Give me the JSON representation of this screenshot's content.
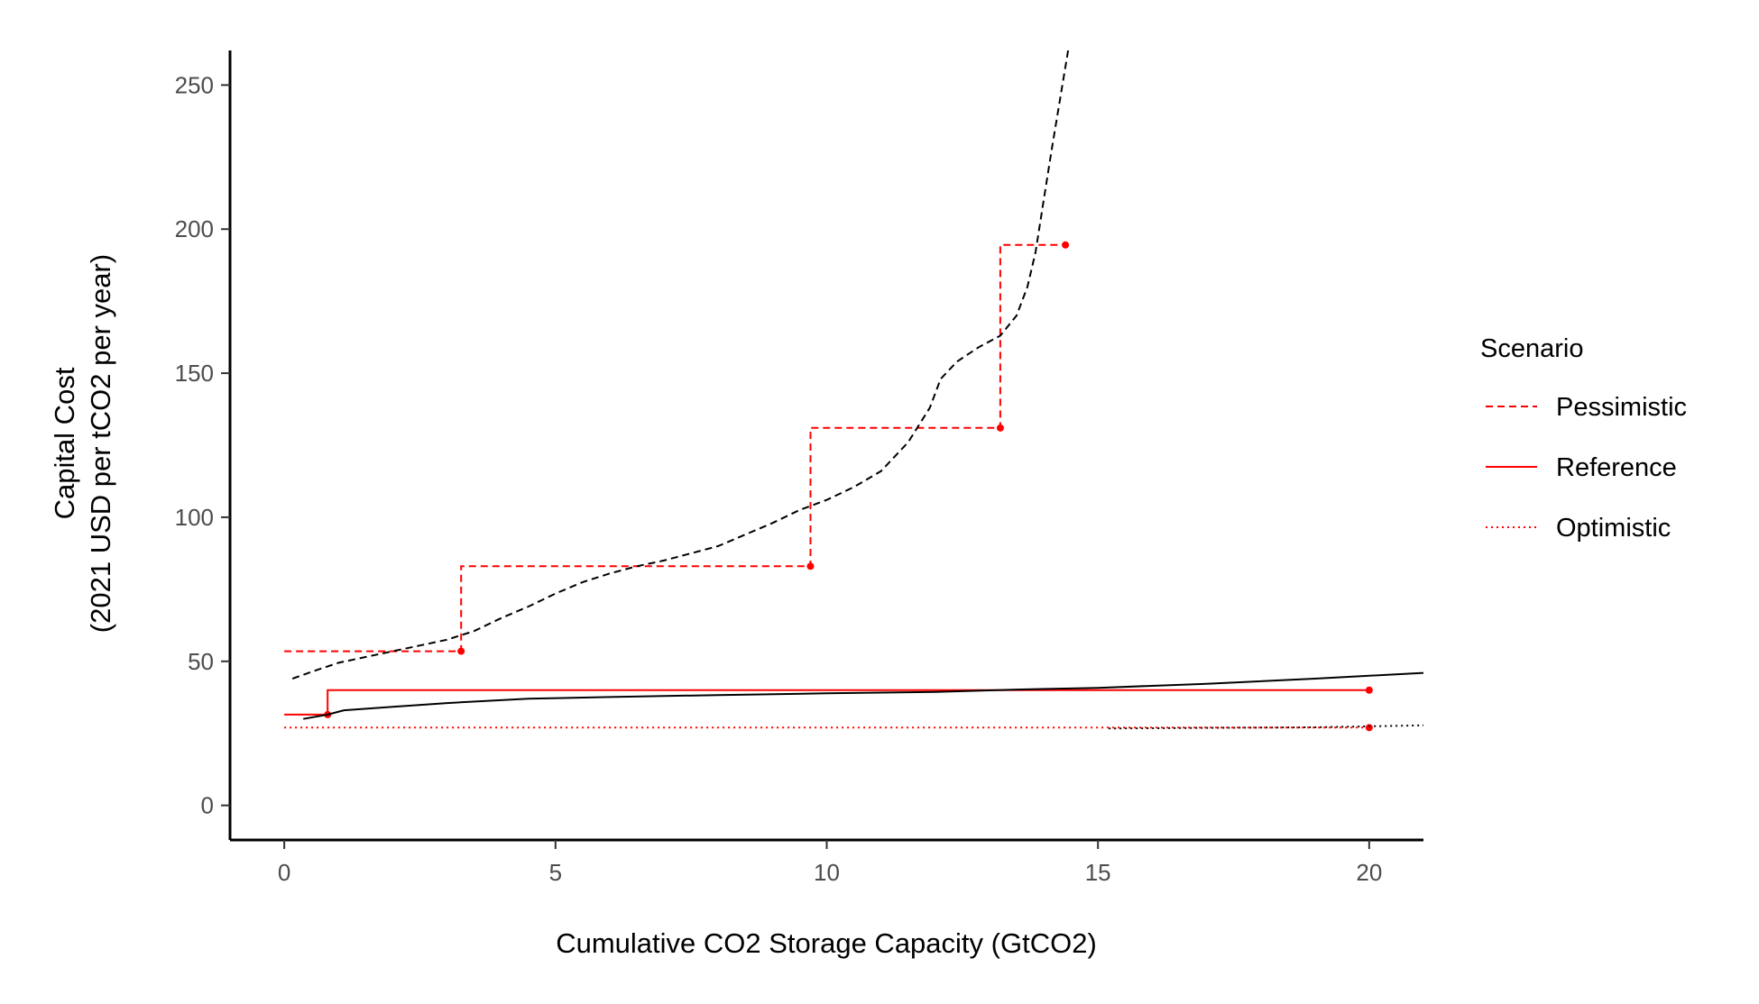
{
  "chart_data": {
    "type": "line",
    "xlabel": "Cumulative CO2 Storage Capacity (GtCO2)",
    "ylabel_lines": [
      "Capital Cost",
      "(2021 USD per tCO2 per year)"
    ],
    "xlim": [
      -1,
      21
    ],
    "ylim": [
      -12,
      262
    ],
    "x_ticks": [
      0,
      5,
      10,
      15,
      20
    ],
    "y_ticks": [
      0,
      50,
      100,
      150,
      200,
      250
    ],
    "grid": false,
    "legend": {
      "title": "Scenario",
      "placement": "right",
      "entries": [
        {
          "label": "Pessimistic",
          "dash": "dashed"
        },
        {
          "label": "Reference",
          "dash": "solid"
        },
        {
          "label": "Optimistic",
          "dash": "dotted"
        }
      ]
    },
    "series": [
      {
        "name": "Pessimistic",
        "kind": "step",
        "color": "#ff0000",
        "dash": "dashed",
        "points": [
          [
            0,
            53.5
          ],
          [
            3.26,
            53.5
          ],
          [
            3.26,
            83
          ],
          [
            9.7,
            83
          ],
          [
            9.7,
            131
          ],
          [
            13.2,
            131
          ],
          [
            13.2,
            194.5
          ],
          [
            14.4,
            194.5
          ]
        ],
        "markers": [
          [
            3.26,
            53.5
          ],
          [
            9.7,
            83
          ],
          [
            13.2,
            131
          ],
          [
            14.4,
            194.5
          ]
        ]
      },
      {
        "name": "Reference",
        "kind": "step",
        "color": "#ff0000",
        "dash": "solid",
        "points": [
          [
            0,
            31.5
          ],
          [
            0.8,
            31.5
          ],
          [
            0.8,
            40
          ],
          [
            20,
            40
          ]
        ],
        "markers": [
          [
            0.8,
            31.5
          ],
          [
            20,
            40
          ]
        ]
      },
      {
        "name": "Optimistic",
        "kind": "step",
        "color": "#ff0000",
        "dash": "dotted",
        "points": [
          [
            0,
            27
          ],
          [
            20,
            27
          ]
        ],
        "markers": [
          [
            20,
            27
          ]
        ]
      },
      {
        "color": "#000000",
        "dash": "dashed",
        "kind": "curve",
        "points": [
          [
            0.15,
            44
          ],
          [
            0.6,
            47
          ],
          [
            1,
            49.5
          ],
          [
            1.5,
            51.5
          ],
          [
            2,
            53.5
          ],
          [
            2.5,
            55.5
          ],
          [
            3,
            57.5
          ],
          [
            3.5,
            60.5
          ],
          [
            4,
            65
          ],
          [
            4.5,
            69
          ],
          [
            5,
            73.5
          ],
          [
            5.5,
            77.5
          ],
          [
            6,
            80.5
          ],
          [
            6.5,
            83
          ],
          [
            7,
            85
          ],
          [
            7.5,
            87.5
          ],
          [
            8,
            90
          ],
          [
            8.5,
            94
          ],
          [
            9,
            98
          ],
          [
            9.5,
            102.5
          ],
          [
            10,
            106
          ],
          [
            10.5,
            110.5
          ],
          [
            11,
            116
          ],
          [
            11.5,
            126
          ],
          [
            11.9,
            138
          ],
          [
            12.1,
            148
          ],
          [
            12.4,
            154
          ],
          [
            12.8,
            159
          ],
          [
            13.2,
            163
          ],
          [
            13.5,
            170
          ],
          [
            13.7,
            180
          ],
          [
            13.85,
            192
          ],
          [
            14.0,
            210
          ],
          [
            14.15,
            228
          ],
          [
            14.3,
            245
          ],
          [
            14.45,
            262
          ]
        ]
      },
      {
        "color": "#000000",
        "dash": "solid",
        "kind": "curve",
        "points": [
          [
            0.35,
            30
          ],
          [
            0.8,
            31.5
          ],
          [
            1.1,
            33
          ],
          [
            2,
            34.2
          ],
          [
            3,
            35.5
          ],
          [
            4.5,
            37
          ],
          [
            6,
            37.6
          ],
          [
            8,
            38.3
          ],
          [
            10,
            38.9
          ],
          [
            12,
            39.4
          ],
          [
            13.5,
            40.2
          ],
          [
            15,
            40.8
          ],
          [
            17,
            42.2
          ],
          [
            19,
            44
          ],
          [
            21,
            46
          ]
        ]
      },
      {
        "color": "#000000",
        "dash": "dotted",
        "kind": "curve",
        "points": [
          [
            15.2,
            26.7
          ],
          [
            17,
            26.9
          ],
          [
            19,
            27.1
          ],
          [
            21,
            27.8
          ]
        ]
      }
    ]
  }
}
